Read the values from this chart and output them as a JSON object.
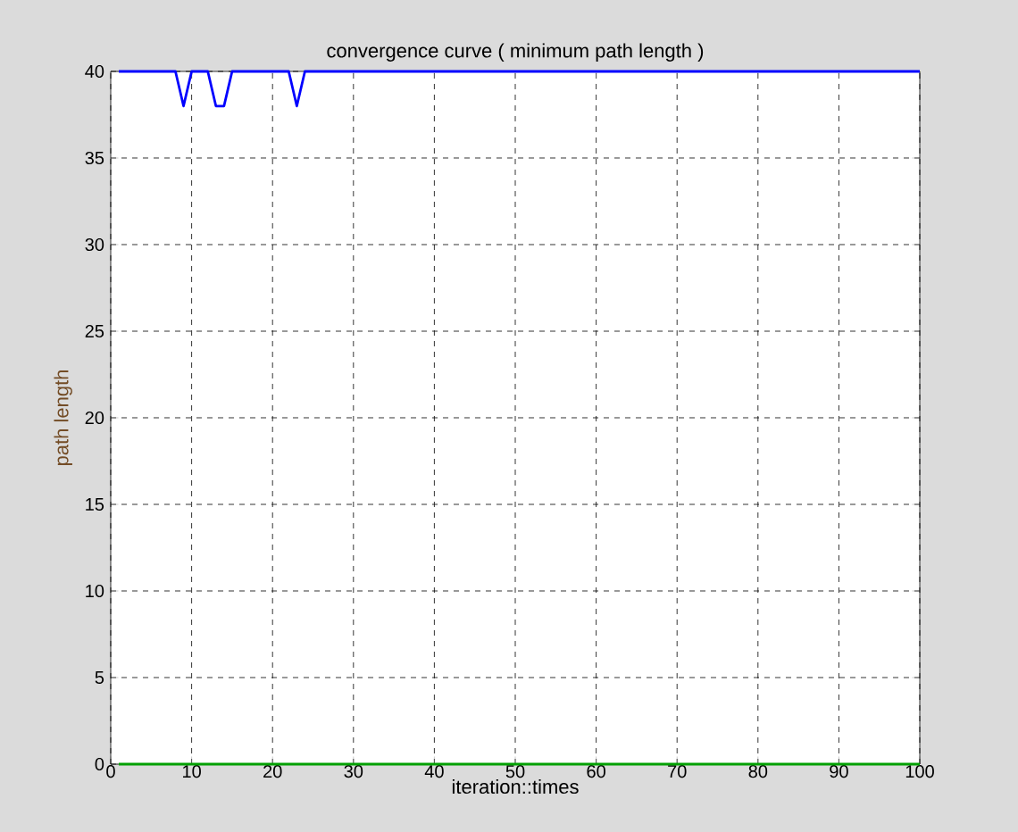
{
  "chart_data": {
    "type": "line",
    "title": "convergence curve ( minimum path length )",
    "xlabel": "iteration::times",
    "ylabel": "path length",
    "series": [
      {
        "color": "#0000ff",
        "x": [
          1,
          8,
          9,
          10,
          12,
          13,
          14,
          15,
          22,
          23,
          24,
          100
        ],
        "values": [
          40,
          40,
          38,
          40,
          40,
          38,
          38,
          40,
          40,
          38,
          40,
          40
        ]
      },
      {
        "color": "#00a000",
        "x": [
          1,
          100
        ],
        "values": [
          0,
          0
        ]
      }
    ],
    "xlim": [
      0,
      100
    ],
    "ylim": [
      0,
      40
    ],
    "xticks": [
      0,
      10,
      20,
      30,
      40,
      50,
      60,
      70,
      80,
      90,
      100
    ],
    "yticks": [
      0,
      5,
      10,
      15,
      20,
      25,
      30,
      35,
      40
    ],
    "grid": true,
    "line_style": "solid"
  }
}
